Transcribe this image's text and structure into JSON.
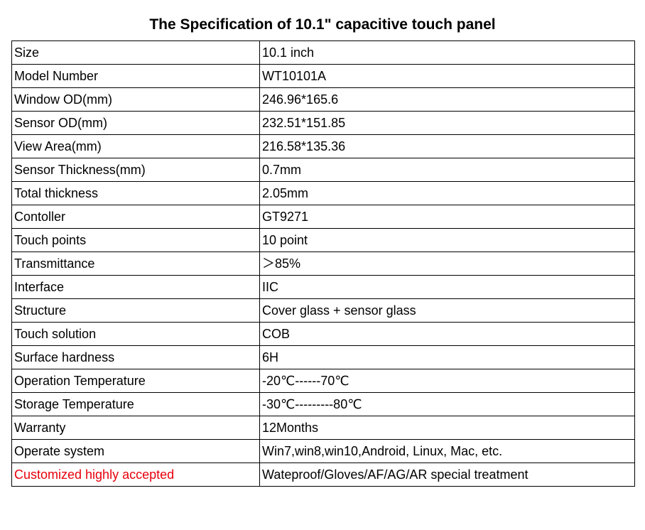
{
  "title": "The Specification of 10.1\" capacitive touch panel",
  "colors": {
    "highlight": "#e8000b"
  },
  "rows": [
    {
      "label": "Size",
      "value": "10.1 inch"
    },
    {
      "label": "Model Number",
      "value": "WT10101A"
    },
    {
      "label": "Window OD(mm)",
      "value": "246.96*165.6"
    },
    {
      "label": "Sensor OD(mm)",
      "value": "232.51*151.85"
    },
    {
      "label": "View Area(mm)",
      "value": "216.58*135.36"
    },
    {
      "label": "Sensor Thickness(mm)",
      "value": "0.7mm"
    },
    {
      "label": "Total thickness",
      "value": "2.05mm"
    },
    {
      "label": "Contoller",
      "value": "GT9271"
    },
    {
      "label": "Touch points",
      "value": "10 point"
    },
    {
      "label": "Transmittance",
      "value": "＞85%"
    },
    {
      "label": "Interface",
      "value": "IIC"
    },
    {
      "label": "Structure",
      "value": "Cover glass + sensor glass"
    },
    {
      "label": "Touch solution",
      "value": "COB"
    },
    {
      "label": "Surface hardness",
      "value": "6H"
    },
    {
      "label": "Operation Temperature",
      "value": "-20℃------70℃"
    },
    {
      "label": "Storage Temperature",
      "value": "-30℃---------80℃"
    },
    {
      "label": "Warranty",
      "value": "12Months"
    },
    {
      "label": "Operate system",
      "value": "Win7,win8,win10,Android, Linux, Mac, etc."
    },
    {
      "label": "Customized highly accepted",
      "value": "Wateproof/Gloves/AF/AG/AR special treatment",
      "highlight": true
    }
  ]
}
